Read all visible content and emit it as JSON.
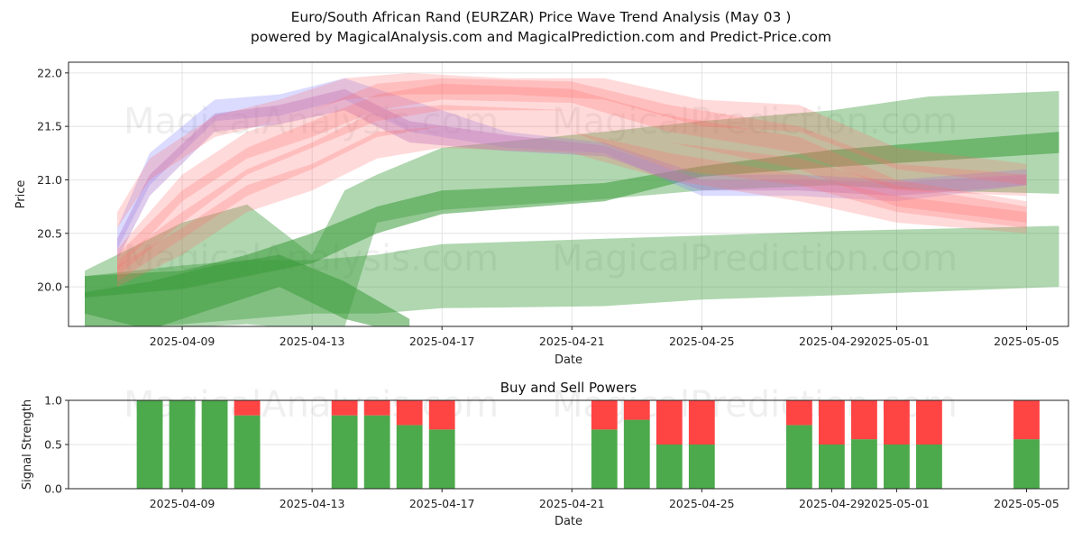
{
  "title_line1": "Euro/South African Rand (EURZAR) Price Wave Trend Analysis (May 03 )",
  "title_line2": "powered by MagicalAnalysis.com and MagicalPrediction.com and Predict-Price.com",
  "watermarks": [
    "MagicalAnalysis.com",
    "MagicalPrediction.com"
  ],
  "chart_data": [
    {
      "type": "area",
      "title": "",
      "xlabel": "Date",
      "ylabel": "Price",
      "x_ticks": [
        "2025-04-09",
        "2025-04-13",
        "2025-04-17",
        "2025-04-21",
        "2025-04-25",
        "2025-04-29",
        "2025-05-01",
        "2025-05-05"
      ],
      "y_ticks": [
        20.0,
        20.5,
        21.0,
        21.5,
        22.0
      ],
      "xlim": [
        "2025-04-05T12:00",
        "2025-05-06T07:00"
      ],
      "ylim": [
        19.63,
        22.1
      ],
      "grid": true,
      "colors": {
        "green": "#3a9a3a",
        "red": "#ff6b6b",
        "blue": "#7f7fff",
        "purple": "#b07cd0"
      },
      "series": [
        {
          "color": "green",
          "opacity": 0.4,
          "x": [
            "2025-04-06",
            "2025-04-09",
            "2025-04-11",
            "2025-04-13",
            "2025-04-14",
            "2025-04-15",
            "2025-04-17",
            "2025-04-22",
            "2025-04-25",
            "2025-04-29",
            "2025-05-02",
            "2025-05-06"
          ],
          "upper": [
            20.15,
            20.6,
            20.77,
            20.3,
            20.9,
            21.05,
            21.3,
            21.45,
            21.55,
            21.65,
            21.78,
            21.83
          ],
          "lower": [
            19.6,
            19.62,
            19.65,
            19.6,
            19.62,
            20.6,
            20.72,
            20.82,
            20.9,
            20.95,
            20.9,
            20.87
          ]
        },
        {
          "color": "green",
          "opacity": 0.4,
          "x": [
            "2025-04-06",
            "2025-04-09",
            "2025-04-11",
            "2025-04-13",
            "2025-04-15",
            "2025-04-17",
            "2025-04-22",
            "2025-04-25",
            "2025-04-29",
            "2025-05-06"
          ],
          "upper": [
            20.1,
            20.2,
            20.25,
            20.25,
            20.3,
            20.4,
            20.45,
            20.48,
            20.52,
            20.57
          ],
          "lower": [
            19.6,
            19.65,
            19.7,
            19.75,
            19.75,
            19.8,
            19.82,
            19.88,
            19.92,
            20.0
          ]
        },
        {
          "color": "green",
          "opacity": 0.55,
          "x": [
            "2025-04-06",
            "2025-04-09",
            "2025-04-11",
            "2025-04-13",
            "2025-04-15",
            "2025-04-17",
            "2025-04-22",
            "2025-04-25",
            "2025-04-29",
            "2025-05-06"
          ],
          "upper": [
            20.1,
            20.15,
            20.3,
            20.5,
            20.75,
            20.9,
            20.97,
            21.13,
            21.28,
            21.45
          ],
          "lower": [
            19.9,
            19.98,
            20.1,
            20.22,
            20.5,
            20.68,
            20.8,
            21.03,
            21.12,
            21.25
          ]
        },
        {
          "color": "green",
          "opacity": 0.55,
          "x": [
            "2025-04-06",
            "2025-04-08",
            "2025-04-10",
            "2025-04-12",
            "2025-04-14",
            "2025-04-16"
          ],
          "upper": [
            19.95,
            20.05,
            20.2,
            20.3,
            20.05,
            19.7
          ],
          "lower": [
            19.75,
            19.6,
            19.8,
            20.0,
            19.7,
            19.55
          ]
        },
        {
          "color": "blue",
          "opacity": 0.28,
          "x": [
            "2025-04-07",
            "2025-04-08",
            "2025-04-10",
            "2025-04-12",
            "2025-04-14",
            "2025-04-16",
            "2025-04-19",
            "2025-04-22",
            "2025-04-25",
            "2025-04-28",
            "2025-05-01",
            "2025-05-05"
          ],
          "upper": [
            20.55,
            21.25,
            21.75,
            21.8,
            21.95,
            21.75,
            21.45,
            21.35,
            21.05,
            21.05,
            21.0,
            21.1
          ],
          "lower": [
            20.35,
            20.95,
            21.55,
            21.6,
            21.75,
            21.45,
            21.3,
            21.25,
            20.85,
            20.85,
            20.8,
            20.95
          ]
        },
        {
          "color": "purple",
          "opacity": 0.4,
          "x": [
            "2025-04-07",
            "2025-04-08",
            "2025-04-10",
            "2025-04-12",
            "2025-04-14",
            "2025-04-16",
            "2025-04-19",
            "2025-04-22",
            "2025-04-25",
            "2025-04-28",
            "2025-05-01",
            "2025-05-05"
          ],
          "upper": [
            20.45,
            21.05,
            21.62,
            21.7,
            21.85,
            21.55,
            21.42,
            21.32,
            21.0,
            21.0,
            20.98,
            21.05
          ],
          "lower": [
            20.25,
            20.85,
            21.45,
            21.52,
            21.65,
            21.35,
            21.27,
            21.22,
            20.9,
            20.9,
            20.85,
            20.95
          ]
        },
        {
          "color": "red",
          "opacity": 0.25,
          "x": [
            "2025-04-07",
            "2025-04-08",
            "2025-04-10",
            "2025-04-12",
            "2025-04-14",
            "2025-04-16",
            "2025-04-19",
            "2025-04-22",
            "2025-04-25",
            "2025-04-28",
            "2025-05-01",
            "2025-05-05"
          ],
          "upper": [
            20.7,
            21.2,
            21.6,
            21.75,
            21.95,
            22.0,
            21.95,
            21.95,
            21.75,
            21.7,
            21.3,
            21.15
          ],
          "lower": [
            20.55,
            21.0,
            21.4,
            21.55,
            21.75,
            21.8,
            21.8,
            21.75,
            21.5,
            21.45,
            21.1,
            20.95
          ]
        },
        {
          "color": "red",
          "opacity": 0.25,
          "x": [
            "2025-04-07",
            "2025-04-09",
            "2025-04-11",
            "2025-04-13",
            "2025-04-15",
            "2025-04-17",
            "2025-04-21",
            "2025-04-24",
            "2025-04-28",
            "2025-05-01",
            "2025-05-05"
          ],
          "upper": [
            20.3,
            20.9,
            21.3,
            21.55,
            21.8,
            21.9,
            21.85,
            21.6,
            21.4,
            21.0,
            20.8
          ],
          "lower": [
            20.1,
            20.6,
            21.05,
            21.3,
            21.55,
            21.65,
            21.65,
            21.35,
            21.1,
            20.75,
            20.6
          ]
        },
        {
          "color": "red",
          "opacity": 0.25,
          "x": [
            "2025-04-07",
            "2025-04-09",
            "2025-04-11",
            "2025-04-13",
            "2025-04-15",
            "2025-04-17",
            "2025-04-21",
            "2025-04-24",
            "2025-04-28",
            "2025-05-01",
            "2025-05-05"
          ],
          "upper": [
            20.25,
            20.7,
            21.1,
            21.35,
            21.65,
            21.7,
            21.65,
            21.35,
            21.2,
            20.95,
            20.75
          ],
          "lower": [
            20.05,
            20.45,
            20.85,
            21.1,
            21.4,
            21.5,
            21.45,
            21.1,
            20.95,
            20.7,
            20.55
          ]
        },
        {
          "color": "red",
          "opacity": 0.25,
          "x": [
            "2025-04-07",
            "2025-04-09",
            "2025-04-11",
            "2025-04-13",
            "2025-04-15",
            "2025-04-17",
            "2025-04-21",
            "2025-04-24",
            "2025-04-28",
            "2025-05-01",
            "2025-05-05"
          ],
          "upper": [
            20.2,
            20.55,
            20.95,
            21.15,
            21.45,
            21.5,
            21.45,
            21.25,
            21.05,
            20.85,
            20.7
          ],
          "lower": [
            20.0,
            20.3,
            20.7,
            20.9,
            21.2,
            21.3,
            21.25,
            21.0,
            20.8,
            20.6,
            20.5
          ]
        },
        {
          "color": "red",
          "opacity": 0.25,
          "x": [
            "2025-04-07",
            "2025-04-09",
            "2025-04-11",
            "2025-04-13",
            "2025-04-15",
            "2025-04-17",
            "2025-04-21",
            "2025-04-24",
            "2025-04-28",
            "2025-05-01",
            "2025-05-05"
          ],
          "upper": [
            20.35,
            21.05,
            21.45,
            21.65,
            21.9,
            21.95,
            21.92,
            21.7,
            21.5,
            21.15,
            21.05
          ],
          "lower": [
            20.15,
            20.8,
            21.2,
            21.4,
            21.65,
            21.75,
            21.72,
            21.45,
            21.25,
            20.9,
            20.85
          ]
        }
      ]
    },
    {
      "type": "bar",
      "title": "Buy and Sell Powers",
      "xlabel": "Date",
      "ylabel": "Signal Strength",
      "x_ticks": [
        "2025-04-09",
        "2025-04-13",
        "2025-04-17",
        "2025-04-21",
        "2025-04-25",
        "2025-04-29",
        "2025-05-01",
        "2025-05-05"
      ],
      "y_ticks": [
        0.0,
        0.5,
        1.0
      ],
      "ylim": [
        0,
        1
      ],
      "grid": true,
      "colors": {
        "buy": "#4caa4c",
        "sell": "#ff4444"
      },
      "bars": [
        {
          "date": "2025-04-08",
          "buy": 1.0
        },
        {
          "date": "2025-04-09",
          "buy": 1.0
        },
        {
          "date": "2025-04-10",
          "buy": 1.0
        },
        {
          "date": "2025-04-11",
          "buy": 0.83
        },
        {
          "date": "2025-04-14",
          "buy": 0.83
        },
        {
          "date": "2025-04-15",
          "buy": 0.83
        },
        {
          "date": "2025-04-16",
          "buy": 0.72
        },
        {
          "date": "2025-04-17",
          "buy": 0.67
        },
        {
          "date": "2025-04-22",
          "buy": 0.67
        },
        {
          "date": "2025-04-23",
          "buy": 0.78
        },
        {
          "date": "2025-04-24",
          "buy": 0.5
        },
        {
          "date": "2025-04-25",
          "buy": 0.5
        },
        {
          "date": "2025-04-28",
          "buy": 0.72
        },
        {
          "date": "2025-04-29",
          "buy": 0.5
        },
        {
          "date": "2025-04-30",
          "buy": 0.56
        },
        {
          "date": "2025-05-01",
          "buy": 0.5
        },
        {
          "date": "2025-05-02",
          "buy": 0.5
        },
        {
          "date": "2025-05-05",
          "buy": 0.56
        }
      ]
    }
  ]
}
